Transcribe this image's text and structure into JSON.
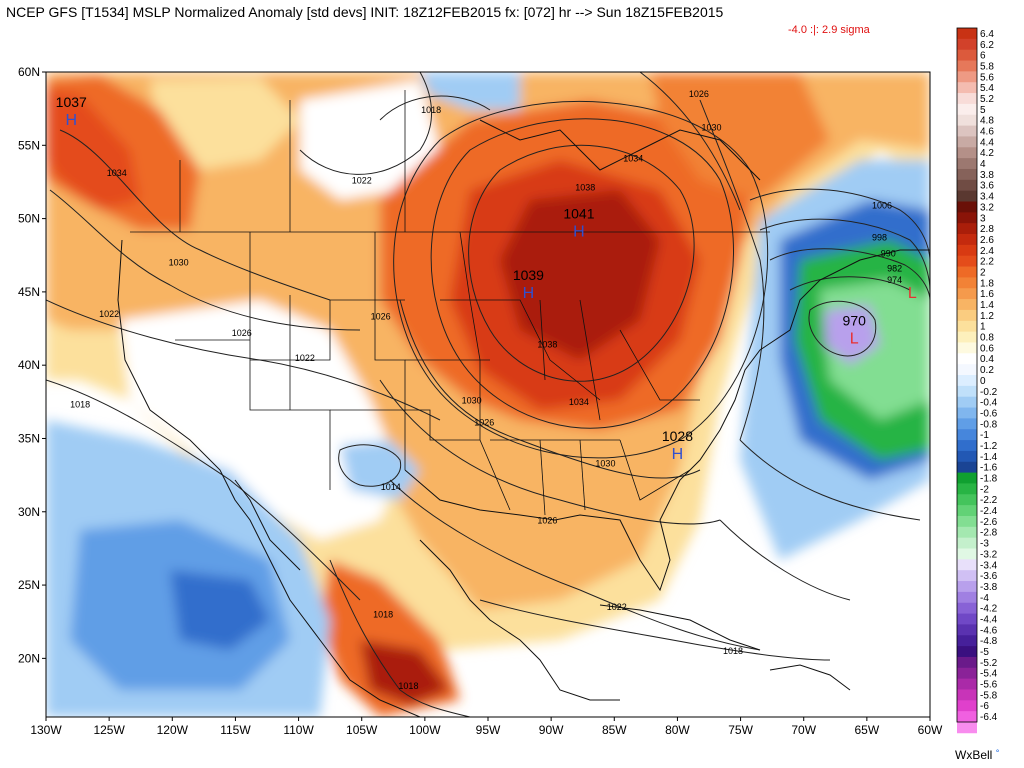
{
  "header": {
    "title": "NCEP GFS [T1534] MSLP Normalized Anomaly [std devs] INIT: 18Z12FEB2015 fx: [072] hr --> Sun 18Z15FEB2015",
    "subtitle": "-4.0 :|: 2.9 sigma"
  },
  "credit": "WxBell",
  "axes": {
    "lat_labels": [
      "60N",
      "55N",
      "50N",
      "45N",
      "40N",
      "35N",
      "30N",
      "25N",
      "20N"
    ],
    "lon_labels": [
      "130W",
      "125W",
      "120W",
      "115W",
      "110W",
      "105W",
      "100W",
      "95W",
      "90W",
      "85W",
      "80W",
      "75W",
      "70W",
      "65W",
      "60W"
    ]
  },
  "colorbar": {
    "labels": [
      "6.4",
      "6.2",
      "6",
      "5.8",
      "5.6",
      "5.4",
      "5.2",
      "5",
      "4.8",
      "4.6",
      "4.4",
      "4.2",
      "4",
      "3.8",
      "3.6",
      "3.4",
      "3.2",
      "3",
      "2.8",
      "2.6",
      "2.4",
      "2.2",
      "2",
      "1.8",
      "1.6",
      "1.4",
      "1.2",
      "1",
      "0.8",
      "0.6",
      "0.4",
      "0.2",
      "0",
      "-0.2",
      "-0.4",
      "-0.6",
      "-0.8",
      "-1",
      "-1.2",
      "-1.4",
      "-1.6",
      "-1.8",
      "-2",
      "-2.2",
      "-2.4",
      "-2.6",
      "-2.8",
      "-3",
      "-3.2",
      "-3.4",
      "-3.6",
      "-3.8",
      "-4",
      "-4.2",
      "-4.4",
      "-4.6",
      "-4.8",
      "-5",
      "-5.2",
      "-5.4",
      "-5.6",
      "-5.8",
      "-6",
      "-6.4"
    ],
    "colors": [
      "#c83214",
      "#d2412a",
      "#dc5a3c",
      "#e6785a",
      "#ee9a84",
      "#f4bcb0",
      "#f8dcd8",
      "#fbeeec",
      "#f0e0dc",
      "#dcc4c0",
      "#c8aaa4",
      "#b49088",
      "#9c7870",
      "#86625a",
      "#704c44",
      "#5a3830",
      "#6a1008",
      "#8a1408",
      "#aa1e0a",
      "#c42a0e",
      "#d83a12",
      "#e44c1a",
      "#ee6a26",
      "#f28236",
      "#f59a4c",
      "#f8b464",
      "#facc80",
      "#fce09c",
      "#fdf0bc",
      "#fefae0",
      "#ffffff",
      "#f4f8ff",
      "#dceeff",
      "#c0e0fa",
      "#a0ccf4",
      "#80b6ee",
      "#609ee6",
      "#4686dc",
      "#306ecc",
      "#2258b4",
      "#1a4494",
      "#10a030",
      "#28b444",
      "#44c45c",
      "#62d276",
      "#82de92",
      "#a4e8b0",
      "#c4f0cc",
      "#e0f8e4",
      "#e8e0fa",
      "#d0c0f4",
      "#b8a0ec",
      "#a080e2",
      "#8862d6",
      "#7048c6",
      "#5a32b0",
      "#46209a",
      "#3a1080",
      "#6a1a8a",
      "#8a2298",
      "#aa2aa8",
      "#c834b8",
      "#e040cc",
      "#f060e0",
      "#f88cee"
    ],
    "zero_colors": [
      "#ffffff",
      "#ffffff"
    ]
  },
  "centers": [
    {
      "type": "H",
      "value": "1037",
      "lon": -128,
      "lat": 56.8,
      "color": "#3050d0"
    },
    {
      "type": "H",
      "value": "1041",
      "lon": -87.8,
      "lat": 49.2,
      "color": "#3050d0"
    },
    {
      "type": "H",
      "value": "1039",
      "lon": -91.8,
      "lat": 45.0,
      "color": "#3050d0"
    },
    {
      "type": "H",
      "value": "1028",
      "lon": -80,
      "lat": 34.0,
      "color": "#3050d0"
    },
    {
      "type": "L",
      "value": "970",
      "lon": -66.0,
      "lat": 41.9,
      "color": "#e83030"
    },
    {
      "type": "L",
      "value": "",
      "lon": -61.4,
      "lat": 45.0,
      "color": "#e83030"
    }
  ],
  "contour_labels": [
    {
      "text": "1034",
      "lon": -124.4,
      "lat": 52.9
    },
    {
      "text": "1030",
      "lon": -119.5,
      "lat": 46.8
    },
    {
      "text": "1026",
      "lon": -114.5,
      "lat": 42.0
    },
    {
      "text": "1022",
      "lon": -125.0,
      "lat": 43.3
    },
    {
      "text": "1018",
      "lon": -127.3,
      "lat": 37.1
    },
    {
      "text": "1022",
      "lon": -109.5,
      "lat": 40.3
    },
    {
      "text": "1026",
      "lon": -103.5,
      "lat": 43.1
    },
    {
      "text": "1018",
      "lon": -99.5,
      "lat": 57.2
    },
    {
      "text": "1022",
      "lon": -105.0,
      "lat": 52.4
    },
    {
      "text": "1038",
      "lon": -87.3,
      "lat": 51.9
    },
    {
      "text": "1034",
      "lon": -83.5,
      "lat": 53.9
    },
    {
      "text": "1030",
      "lon": -77.3,
      "lat": 56.0
    },
    {
      "text": "1026",
      "lon": -78.3,
      "lat": 58.3
    },
    {
      "text": "1038",
      "lon": -90.3,
      "lat": 41.2
    },
    {
      "text": "1034",
      "lon": -87.8,
      "lat": 37.3
    },
    {
      "text": "1030",
      "lon": -96.3,
      "lat": 37.4
    },
    {
      "text": "1030",
      "lon": -85.7,
      "lat": 33.1
    },
    {
      "text": "1026",
      "lon": -95.3,
      "lat": 35.9
    },
    {
      "text": "1026",
      "lon": -90.3,
      "lat": 29.2
    },
    {
      "text": "1014",
      "lon": -102.7,
      "lat": 31.5
    },
    {
      "text": "1018",
      "lon": -103.3,
      "lat": 22.8
    },
    {
      "text": "1018",
      "lon": -101.3,
      "lat": 17.9
    },
    {
      "text": "1022",
      "lon": -84.8,
      "lat": 23.3
    },
    {
      "text": "1018",
      "lon": -75.6,
      "lat": 20.3
    },
    {
      "text": "1006",
      "lon": -63.8,
      "lat": 50.7
    },
    {
      "text": "998",
      "lon": -64.0,
      "lat": 48.5
    },
    {
      "text": "990",
      "lon": -63.3,
      "lat": 47.4
    },
    {
      "text": "982",
      "lon": -62.8,
      "lat": 46.4
    },
    {
      "text": "974",
      "lon": -62.8,
      "lat": 45.6
    }
  ]
}
